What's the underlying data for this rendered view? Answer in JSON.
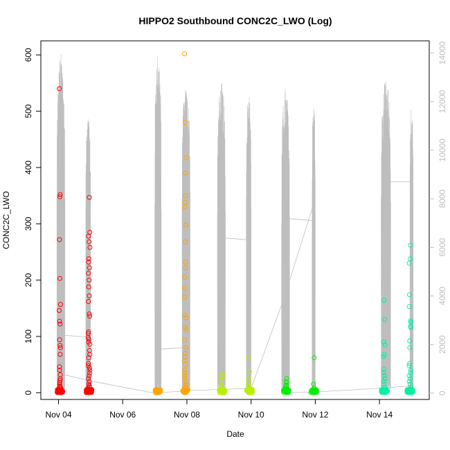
{
  "chart_data": {
    "type": "scatter",
    "title": "HIPPO2 Southbound CONC2C_LWO (Log)",
    "xlabel": "Date",
    "ylabel": "CONC2C_LWO",
    "x_tick_labels": [
      "Nov 04",
      "Nov 06",
      "Nov 08",
      "Nov 10",
      "Nov 12",
      "Nov 14"
    ],
    "x_tick_days": [
      4,
      6,
      8,
      10,
      12,
      14
    ],
    "xlim": [
      3.45,
      15.55
    ],
    "ylim": [
      -12,
      625
    ],
    "y_ticks": [
      0,
      100,
      200,
      300,
      400,
      500,
      600
    ],
    "y2_ticks": [
      0,
      2000,
      4000,
      6000,
      8000,
      10000,
      12000,
      14000
    ],
    "y2lim": [
      -260,
      14500
    ],
    "colors": {
      "altitude_line": "#bebebe",
      "series": [
        "#ff0000",
        "#ffa500",
        "#b8f000",
        "#00ee00",
        "#00f0a0"
      ]
    },
    "series": [
      {
        "color": "#ff0000",
        "clusters": [
          {
            "day": 4.05,
            "values": [
              540,
              352,
              348,
              272,
              203,
              157,
              146,
              127,
              122,
              94,
              84,
              80,
              68,
              46,
              40,
              32,
              25,
              22,
              18,
              15,
              12,
              10,
              8,
              6,
              5,
              4,
              3,
              2,
              1,
              0
            ]
          },
          {
            "day": 4.95,
            "values": [
              347,
              285,
              278,
              268,
              258,
              238,
              232,
              222,
              212,
              200,
              188,
              172,
              162,
              140,
              136,
              108,
              105,
              98,
              95,
              90,
              86,
              75,
              68,
              62,
              52,
              48,
              44,
              40,
              35,
              30,
              25,
              20,
              15,
              12,
              10,
              8,
              6,
              4,
              3,
              2,
              1,
              0
            ]
          }
        ]
      },
      {
        "color": "#ffa500",
        "clusters": [
          {
            "day": 7.1,
            "values": [
              5,
              4,
              3,
              2,
              1,
              0
            ]
          },
          {
            "day": 7.95,
            "values": [
              602,
              480,
              417,
              390,
              350,
              338,
              330,
              298,
              268,
              232,
              222,
              205,
              186,
              170,
              138,
              133,
              116,
              112,
              94,
              80,
              70,
              64,
              57,
              50,
              40,
              35,
              30,
              25,
              20,
              15,
              12,
              10,
              8,
              6,
              4,
              3,
              2,
              1,
              0
            ]
          }
        ]
      },
      {
        "color": "#b8f000",
        "clusters": [
          {
            "day": 9.1,
            "values": [
              32,
              28,
              22,
              16,
              12,
              8,
              6,
              4,
              2,
              1,
              0
            ]
          },
          {
            "day": 9.95,
            "values": [
              62,
              38,
              25,
              18,
              12,
              8,
              5,
              3,
              2,
              1,
              0
            ]
          }
        ]
      },
      {
        "color": "#00ee00",
        "clusters": [
          {
            "day": 11.1,
            "values": [
              25,
              20,
              18,
              14,
              12,
              9,
              7,
              5,
              3,
              2,
              1,
              0
            ]
          },
          {
            "day": 11.95,
            "values": [
              62,
              15,
              8,
              5,
              3,
              1,
              0
            ]
          }
        ]
      },
      {
        "color": "#00f0a0",
        "clusters": [
          {
            "day": 14.15,
            "values": [
              164,
              130,
              90,
              85,
              68,
              64,
              42,
              36,
              30,
              25,
              20,
              15,
              10,
              8,
              5,
              3,
              2,
              1,
              0
            ]
          },
          {
            "day": 14.95,
            "values": [
              262,
              238,
              230,
              174,
              153,
              128,
              125,
              118,
              116,
              92,
              80,
              52,
              48,
              40,
              35,
              30,
              25,
              20,
              15,
              10,
              6,
              3,
              1,
              0
            ]
          }
        ]
      }
    ],
    "altitude_profiles": [
      {
        "start": 3.95,
        "end": 4.2,
        "peak": 14000,
        "base": 8600
      },
      {
        "start": 4.85,
        "end": 5.0,
        "peak": 11400,
        "base": 7800
      },
      {
        "start": 7.0,
        "end": 7.2,
        "peak": 14100,
        "base": 8800
      },
      {
        "start": 7.85,
        "end": 8.1,
        "peak": 12600,
        "base": 8800
      },
      {
        "start": 8.95,
        "end": 9.2,
        "peak": 12800,
        "base": 8200
      },
      {
        "start": 9.85,
        "end": 10.0,
        "peak": 12400,
        "base": 8200
      },
      {
        "start": 10.95,
        "end": 11.2,
        "peak": 12600,
        "base": 7800
      },
      {
        "start": 11.9,
        "end": 12.0,
        "peak": 12000,
        "base": 7800
      },
      {
        "start": 14.05,
        "end": 14.35,
        "peak": 12900,
        "base": 8600
      },
      {
        "start": 14.95,
        "end": 15.05,
        "peak": 11800,
        "base": 8400
      }
    ],
    "altitude_transits": [
      {
        "x": [
          4.05,
          4.5,
          4.95
        ],
        "y": [
          2400,
          2350,
          2300
        ]
      },
      {
        "x": [
          4.05,
          5.0,
          7.0,
          8.0
        ],
        "y": [
          800,
          500,
          0,
          100
        ]
      },
      {
        "x": [
          7.0,
          7.7,
          8.1
        ],
        "y": [
          1800,
          1850,
          1900
        ]
      },
      {
        "x": [
          8.0,
          9.0,
          10.0
        ],
        "y": [
          100,
          150,
          200
        ]
      },
      {
        "x": [
          9.1,
          10.0
        ],
        "y": [
          6400,
          6300
        ]
      },
      {
        "x": [
          10.0,
          11.0,
          12.0
        ],
        "y": [
          200,
          3800,
          8000
        ]
      },
      {
        "x": [
          11.0,
          11.95
        ],
        "y": [
          7200,
          7100
        ]
      },
      {
        "x": [
          11.0,
          12.0,
          14.0,
          15.0
        ],
        "y": [
          0,
          50,
          200,
          300
        ]
      },
      {
        "x": [
          14.15,
          15.0
        ],
        "y": [
          8700,
          8700
        ]
      }
    ]
  }
}
